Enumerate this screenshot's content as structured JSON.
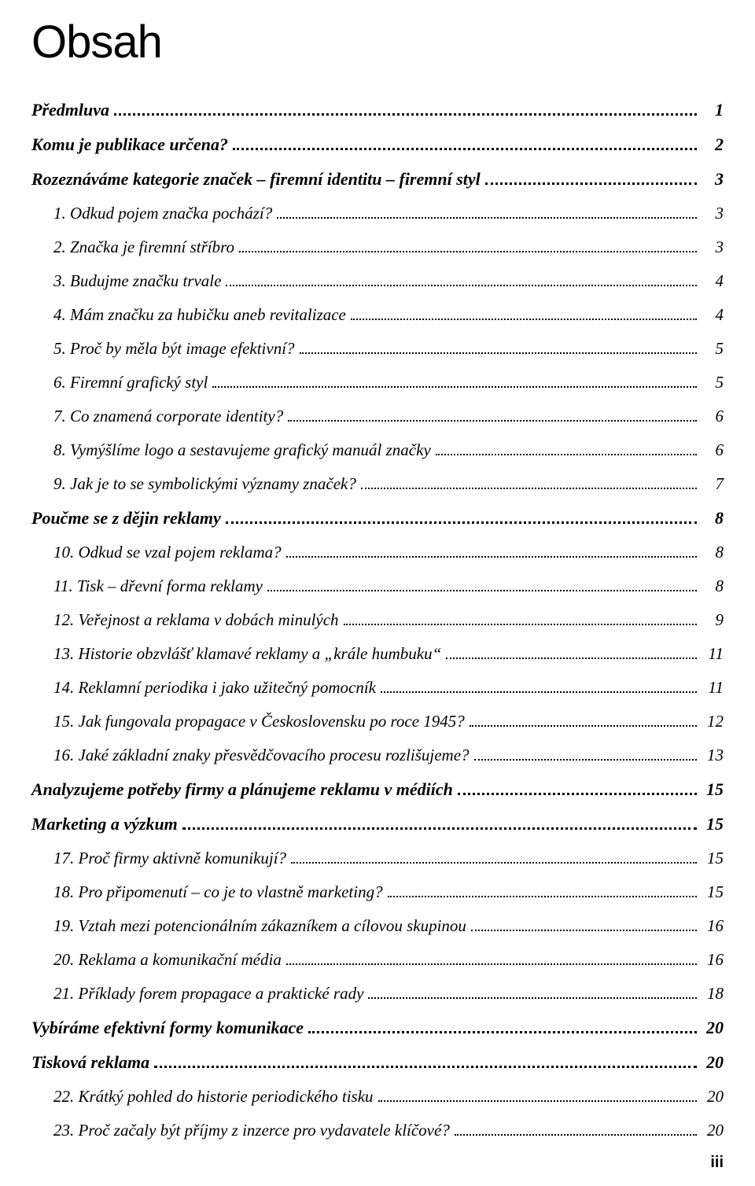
{
  "title": "Obsah",
  "footer_page": "iii",
  "toc": [
    {
      "style": "bold",
      "label": "Předmluva",
      "page": "1"
    },
    {
      "style": "bold",
      "label": "Komu je publikace určena?",
      "page": "2"
    },
    {
      "style": "bold",
      "label": "Rozeznáváme kategorie značek – firemní identitu – firemní styl",
      "page": "3"
    },
    {
      "style": "num",
      "label": "1. Odkud pojem značka pochází?",
      "page": "3"
    },
    {
      "style": "num",
      "label": "2. Značka je firemní stříbro",
      "page": "3"
    },
    {
      "style": "num",
      "label": "3. Budujme značku trvale",
      "page": "4"
    },
    {
      "style": "num",
      "label": "4. Mám značku za hubičku aneb revitalizace",
      "page": "4"
    },
    {
      "style": "num",
      "label": "5. Proč by měla být image efektivní?",
      "page": "5"
    },
    {
      "style": "num",
      "label": "6. Firemní grafický styl",
      "page": "5"
    },
    {
      "style": "num",
      "label": "7. Co znamená corporate identity?",
      "page": "6"
    },
    {
      "style": "num",
      "label": "8. Vymýšlíme logo a sestavujeme grafický manuál značky",
      "page": "6"
    },
    {
      "style": "num",
      "label": "9. Jak je to se symbolickými významy značek?",
      "page": "7"
    },
    {
      "style": "bold",
      "label": "Poučme se z dějin reklamy",
      "page": "8"
    },
    {
      "style": "num",
      "label": "10. Odkud se vzal pojem reklama?",
      "page": "8"
    },
    {
      "style": "num",
      "label": "11. Tisk – dřevní forma reklamy",
      "page": "8"
    },
    {
      "style": "num",
      "label": "12. Veřejnost a reklama v dobách minulých",
      "page": "9"
    },
    {
      "style": "num",
      "label": "13. Historie obzvlášť klamavé reklamy a „krále humbuku“",
      "page": "11"
    },
    {
      "style": "num",
      "label": "14. Reklamní periodika i jako užitečný pomocník",
      "page": "11"
    },
    {
      "style": "num",
      "label": "15. Jak fungovala propagace v Československu po roce 1945?",
      "page": "12"
    },
    {
      "style": "num",
      "label": "16. Jaké základní znaky přesvědčovacího procesu rozlišujeme?",
      "page": "13"
    },
    {
      "style": "bold",
      "label": "Analyzujeme potřeby firmy a plánujeme reklamu v médiích",
      "page": "15"
    },
    {
      "style": "bold",
      "label": "Marketing a výzkum",
      "page": "15"
    },
    {
      "style": "num",
      "label": "17. Proč firmy aktivně komunikují?",
      "page": "15"
    },
    {
      "style": "num",
      "label": "18. Pro připomenutí – co je to vlastně marketing?",
      "page": "15"
    },
    {
      "style": "num",
      "label": "19. Vztah mezi potencionálním zákazníkem a cílovou skupinou",
      "page": "16"
    },
    {
      "style": "num",
      "label": "20. Reklama a komunikační média",
      "page": "16"
    },
    {
      "style": "num",
      "label": "21. Příklady forem propagace a praktické rady",
      "page": "18"
    },
    {
      "style": "bold",
      "label": "Vybíráme efektivní formy komunikace",
      "page": "20"
    },
    {
      "style": "bold",
      "label": "Tisková reklama",
      "page": "20"
    },
    {
      "style": "num",
      "label": "22. Krátký pohled do historie periodického tisku",
      "page": "20"
    },
    {
      "style": "num",
      "label": "23. Proč začaly být příjmy z inzerce pro vydavatele klíčové?",
      "page": "20"
    }
  ]
}
